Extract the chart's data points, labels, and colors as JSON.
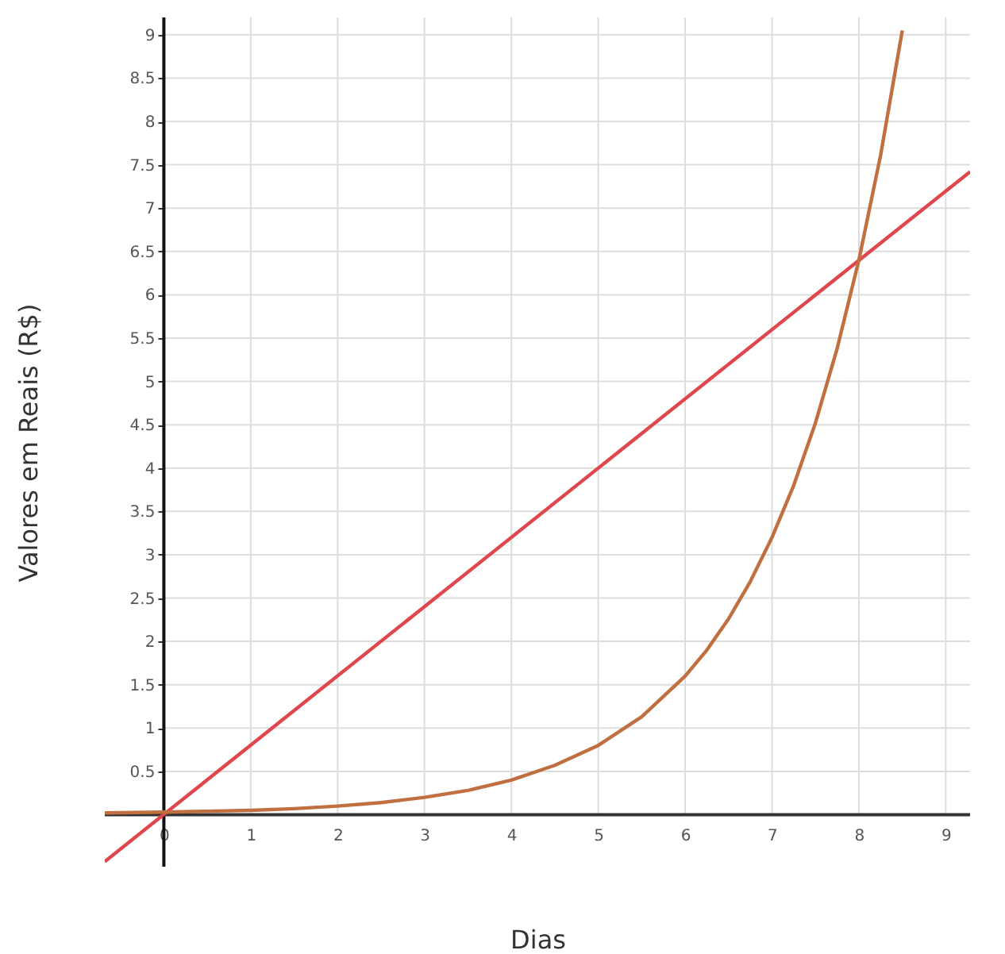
{
  "chart_data": {
    "type": "line",
    "xlabel": "Dias",
    "ylabel": "Valores em Reais (R$)",
    "xlim": [
      -0.68,
      9.28
    ],
    "ylim": [
      -0.6,
      9.2
    ],
    "xticks": [
      0,
      1,
      2,
      3,
      4,
      5,
      6,
      7,
      8,
      9
    ],
    "yticks": [
      0.5,
      1,
      1.5,
      2,
      2.5,
      3,
      3.5,
      4,
      4.5,
      5,
      5.5,
      6,
      6.5,
      7,
      7.5,
      8,
      8.5,
      9
    ],
    "grid": true,
    "marker": "none",
    "line_style": "solid",
    "series": [
      {
        "color": "#e0474c",
        "x": [
          -0.68,
          9.28
        ],
        "values": [
          -0.54,
          7.42
        ]
      },
      {
        "color": "#c07040",
        "x": [
          -0.68,
          0,
          0.5,
          1,
          1.5,
          2,
          2.5,
          3,
          3.5,
          4,
          4.5,
          5,
          5.5,
          6,
          6.25,
          6.5,
          6.75,
          7,
          7.25,
          7.5,
          7.75,
          8,
          8.25,
          8.5
        ],
        "values": [
          0.02,
          0.03,
          0.04,
          0.05,
          0.07,
          0.1,
          0.14,
          0.2,
          0.28,
          0.4,
          0.57,
          0.8,
          1.13,
          1.6,
          1.9,
          2.26,
          2.69,
          3.2,
          3.8,
          4.52,
          5.38,
          6.4,
          7.61,
          9.05
        ]
      }
    ]
  }
}
